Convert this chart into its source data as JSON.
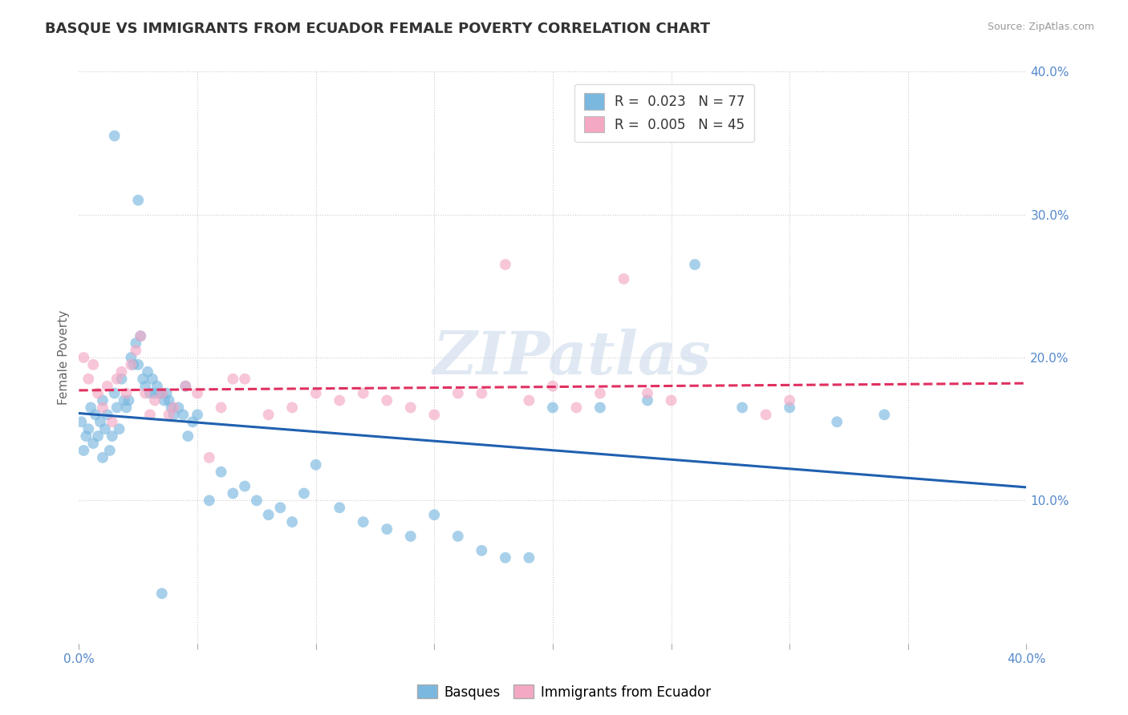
{
  "title": "BASQUE VS IMMIGRANTS FROM ECUADOR FEMALE POVERTY CORRELATION CHART",
  "source": "Source: ZipAtlas.com",
  "ylabel": "Female Poverty",
  "xlim": [
    0.0,
    0.4
  ],
  "ylim": [
    0.0,
    0.4
  ],
  "xticks": [
    0.0,
    0.05,
    0.1,
    0.15,
    0.2,
    0.25,
    0.3,
    0.35,
    0.4
  ],
  "yticks": [
    0.1,
    0.2,
    0.3,
    0.4
  ],
  "right_ytick_labels": [
    "10.0%",
    "20.0%",
    "30.0%",
    "40.0%"
  ],
  "legend_line1": "R =  0.023   N = 77",
  "legend_line2": "R =  0.005   N = 45",
  "legend_label1": "Basques",
  "legend_label2": "Immigrants from Ecuador",
  "blue_color": "#7ab8e0",
  "pink_color": "#f4a8c4",
  "blue_line_color": "#2060b0",
  "pink_line_color": "#e03060",
  "watermark": "ZIPatlas",
  "background_color": "#ffffff",
  "basques_x": [
    0.001,
    0.002,
    0.003,
    0.004,
    0.005,
    0.006,
    0.007,
    0.008,
    0.009,
    0.01,
    0.01,
    0.011,
    0.012,
    0.013,
    0.014,
    0.015,
    0.016,
    0.017,
    0.018,
    0.019,
    0.02,
    0.021,
    0.022,
    0.023,
    0.024,
    0.025,
    0.026,
    0.027,
    0.028,
    0.029,
    0.03,
    0.031,
    0.032,
    0.033,
    0.034,
    0.035,
    0.036,
    0.037,
    0.038,
    0.039,
    0.04,
    0.042,
    0.044,
    0.046,
    0.048,
    0.05,
    0.055,
    0.06,
    0.065,
    0.07,
    0.075,
    0.08,
    0.085,
    0.09,
    0.095,
    0.1,
    0.11,
    0.12,
    0.13,
    0.14,
    0.15,
    0.16,
    0.17,
    0.18,
    0.19,
    0.2,
    0.22,
    0.24,
    0.26,
    0.28,
    0.3,
    0.32,
    0.34,
    0.015,
    0.025,
    0.035,
    0.045
  ],
  "basques_y": [
    0.155,
    0.135,
    0.145,
    0.15,
    0.165,
    0.14,
    0.16,
    0.145,
    0.155,
    0.17,
    0.13,
    0.15,
    0.16,
    0.135,
    0.145,
    0.175,
    0.165,
    0.15,
    0.185,
    0.17,
    0.165,
    0.17,
    0.2,
    0.195,
    0.21,
    0.195,
    0.215,
    0.185,
    0.18,
    0.19,
    0.175,
    0.185,
    0.175,
    0.18,
    0.175,
    0.175,
    0.17,
    0.175,
    0.17,
    0.165,
    0.16,
    0.165,
    0.16,
    0.145,
    0.155,
    0.16,
    0.1,
    0.12,
    0.105,
    0.11,
    0.1,
    0.09,
    0.095,
    0.085,
    0.105,
    0.125,
    0.095,
    0.085,
    0.08,
    0.075,
    0.09,
    0.075,
    0.065,
    0.06,
    0.06,
    0.165,
    0.165,
    0.17,
    0.265,
    0.165,
    0.165,
    0.155,
    0.16,
    0.355,
    0.31,
    0.035,
    0.18
  ],
  "ecuador_x": [
    0.002,
    0.004,
    0.006,
    0.008,
    0.01,
    0.012,
    0.014,
    0.016,
    0.018,
    0.02,
    0.022,
    0.024,
    0.026,
    0.028,
    0.03,
    0.032,
    0.035,
    0.038,
    0.04,
    0.045,
    0.05,
    0.055,
    0.06,
    0.065,
    0.07,
    0.08,
    0.09,
    0.1,
    0.11,
    0.12,
    0.13,
    0.14,
    0.15,
    0.16,
    0.17,
    0.18,
    0.19,
    0.2,
    0.21,
    0.22,
    0.23,
    0.24,
    0.25,
    0.29,
    0.3
  ],
  "ecuador_y": [
    0.2,
    0.185,
    0.195,
    0.175,
    0.165,
    0.18,
    0.155,
    0.185,
    0.19,
    0.175,
    0.195,
    0.205,
    0.215,
    0.175,
    0.16,
    0.17,
    0.175,
    0.16,
    0.165,
    0.18,
    0.175,
    0.13,
    0.165,
    0.185,
    0.185,
    0.16,
    0.165,
    0.175,
    0.17,
    0.175,
    0.17,
    0.165,
    0.16,
    0.175,
    0.175,
    0.265,
    0.17,
    0.18,
    0.165,
    0.175,
    0.255,
    0.175,
    0.17,
    0.16,
    0.17
  ]
}
